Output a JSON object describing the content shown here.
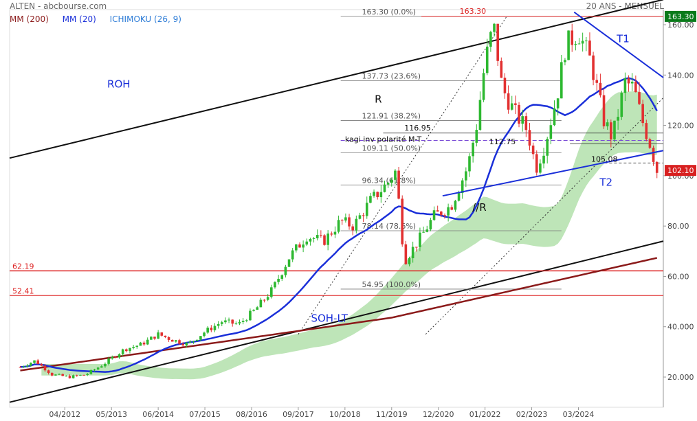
{
  "header": {
    "title": "ALTEN - abcbourse.com",
    "period": "20 ANS - MENSUEL"
  },
  "legend": [
    {
      "label": "MM (200)",
      "color": "#8b1a1a"
    },
    {
      "label": "MM (20)",
      "color": "#1a2fd9"
    },
    {
      "label": "ICHIMOKU (26, 9)",
      "color": "#2a7ad6"
    }
  ],
  "chart_data": {
    "type": "candlestick",
    "y_ticks": [
      "20.000",
      "40.000",
      "60.00",
      "80.00",
      "100.00",
      "120.00",
      "140.00",
      "160.00"
    ],
    "y_tick_values": [
      20,
      40,
      60,
      80,
      100,
      120,
      140,
      160
    ],
    "ylim": [
      8,
      166
    ],
    "x_ticks": [
      "04/2012",
      "05/2013",
      "06/2014",
      "07/2015",
      "08/2016",
      "09/2017",
      "10/2018",
      "11/2019",
      "12/2020",
      "01/2022",
      "02/2023",
      "03/2024"
    ],
    "last_price": "102.10",
    "top_price": "163.30",
    "fib_levels": [
      {
        "label": "163.30  (0.0%)",
        "value": 163.3
      },
      {
        "label": "137.73  (23.6%)",
        "value": 137.73
      },
      {
        "label": "121.91  (38.2%)",
        "value": 121.91
      },
      {
        "label": "109.11  (50.0%)",
        "value": 109.11
      },
      {
        "label": "96.34  (61.8%)",
        "value": 96.34
      },
      {
        "label": "78.14  (78.6%)",
        "value": 78.14
      },
      {
        "label": "54.95  (100.0%)",
        "value": 54.95
      }
    ],
    "horizontal_levels": [
      {
        "label": "62.19",
        "value": 62.19
      },
      {
        "label": "52.41",
        "value": 52.41
      },
      {
        "label": "163.30",
        "value": 163.3
      }
    ],
    "annotations": [
      "ROH",
      "SOH-LT",
      "R",
      "//R",
      "T1",
      "T2",
      "kagi inv polarité M-T",
      "116.95",
      "112.75",
      "105.08"
    ],
    "annotation_values": {
      "kagi": 112.75,
      "level_116": 116.95,
      "level_105": 105.08
    },
    "close_path": [
      [
        2011.25,
        24
      ],
      [
        2011.6,
        26.5
      ],
      [
        2012.0,
        21
      ],
      [
        2012.4,
        20
      ],
      [
        2012.8,
        21
      ],
      [
        2013.2,
        25
      ],
      [
        2013.7,
        31
      ],
      [
        2014.1,
        33
      ],
      [
        2014.5,
        37
      ],
      [
        2014.8,
        35
      ],
      [
        2015.2,
        33
      ],
      [
        2015.6,
        38
      ],
      [
        2016.0,
        42
      ],
      [
        2016.4,
        41
      ],
      [
        2016.8,
        47
      ],
      [
        2017.2,
        55
      ],
      [
        2017.6,
        68
      ],
      [
        2018.0,
        76
      ],
      [
        2018.4,
        74
      ],
      [
        2018.8,
        82
      ],
      [
        2019.1,
        80
      ],
      [
        2019.5,
        90
      ],
      [
        2019.9,
        97
      ],
      [
        2020.1,
        102
      ],
      [
        2020.3,
        66
      ],
      [
        2020.7,
        76
      ],
      [
        2021.0,
        84
      ],
      [
        2021.4,
        88
      ],
      [
        2021.8,
        104
      ],
      [
        2022.0,
        120
      ],
      [
        2022.2,
        145
      ],
      [
        2022.4,
        160
      ],
      [
        2022.6,
        135
      ],
      [
        2022.9,
        125
      ],
      [
        2023.2,
        118
      ],
      [
        2023.4,
        103
      ],
      [
        2023.6,
        112
      ],
      [
        2023.9,
        132
      ],
      [
        2024.1,
        152
      ],
      [
        2024.4,
        157
      ],
      [
        2024.7,
        145
      ],
      [
        2025.0,
        122
      ],
      [
        2025.2,
        115
      ],
      [
        2025.5,
        137
      ],
      [
        2025.7,
        135
      ],
      [
        2025.9,
        122
      ],
      [
        2026.1,
        112
      ],
      [
        2026.25,
        102.1
      ]
    ]
  }
}
